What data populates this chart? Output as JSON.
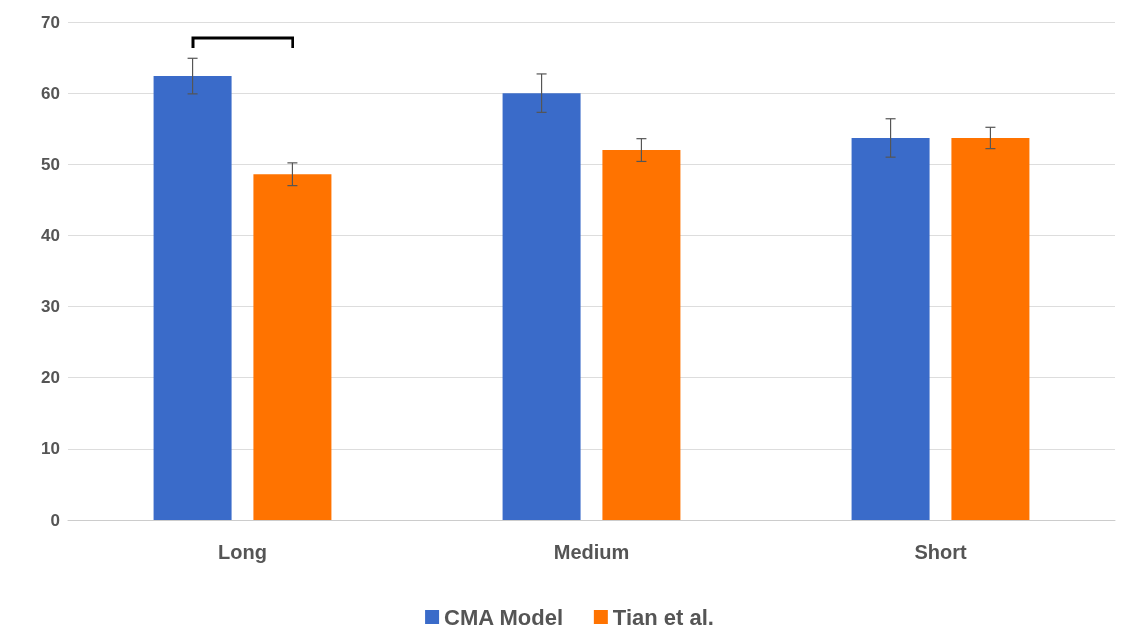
{
  "chart_data": {
    "type": "bar",
    "categories": [
      "Long",
      "Medium",
      "Short"
    ],
    "series": [
      {
        "name": "CMA Model",
        "color": "#3a6bc9",
        "values": [
          62.4,
          60.0,
          53.7
        ],
        "errors": [
          2.5,
          2.7,
          2.7
        ]
      },
      {
        "name": "Tian et al.",
        "color": "#ff7300",
        "values": [
          48.6,
          52.0,
          53.7
        ],
        "errors": [
          1.6,
          1.6,
          1.5
        ]
      }
    ],
    "ylim": [
      0,
      70
    ],
    "yticks": [
      0,
      10,
      20,
      30,
      40,
      50,
      60,
      70
    ],
    "grid": "y",
    "legend": "bottom"
  }
}
